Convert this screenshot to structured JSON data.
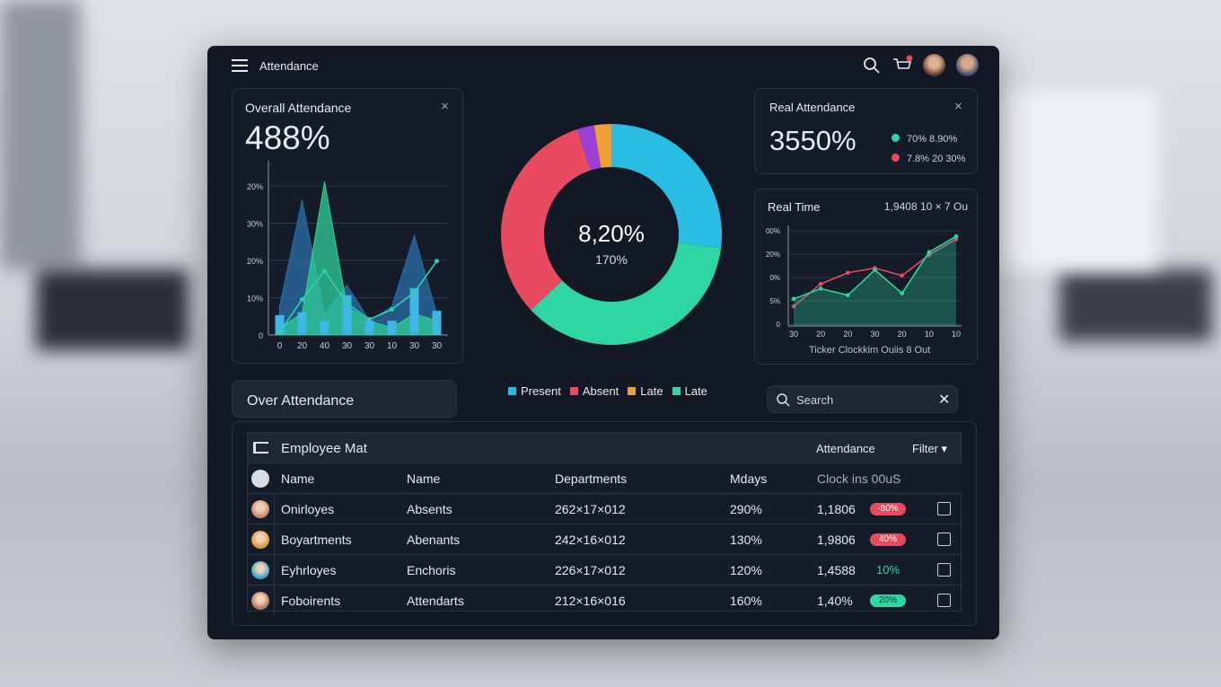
{
  "header": {
    "title": "Attendance"
  },
  "overall": {
    "title": "Overall Attendance",
    "value": "488%",
    "chart_data": {
      "type": "bar",
      "y_labels": [
        "20%",
        "30%",
        "20%",
        "10%",
        "0"
      ],
      "categories": [
        "0",
        "20",
        "40",
        "30",
        "30",
        "10",
        "30",
        "30"
      ],
      "ylim": [
        0,
        110
      ],
      "bars": {
        "color": "#3fb6e6",
        "values": [
          14,
          16,
          10,
          28,
          10,
          10,
          33,
          17
        ]
      },
      "areas": [
        {
          "color": "#2b6ea8",
          "values": [
            20,
            95,
            15,
            35,
            10,
            20,
            70,
            15
          ]
        },
        {
          "color": "#2fcf9a",
          "values": [
            5,
            15,
            108,
            20,
            10,
            5,
            15,
            10
          ]
        }
      ],
      "line": {
        "color": "#2fd0b0",
        "values": [
          2,
          25,
          45,
          22,
          11,
          18,
          30,
          52
        ]
      }
    }
  },
  "donut": {
    "chart_data": {
      "type": "pie",
      "center_value": "8,20%",
      "center_label": "170%",
      "segments": [
        {
          "name": "Present",
          "color": "#29bde3",
          "value": 27
        },
        {
          "name": "Late",
          "color": "#2ed6a2",
          "value": 36
        },
        {
          "name": "Absent",
          "color": "#e84a5f",
          "value": 32
        },
        {
          "color": "#9b3fd6",
          "value": 2.5
        },
        {
          "name": "Late",
          "color": "#f0a030",
          "value": 2.5
        }
      ]
    }
  },
  "real_attendance": {
    "title": "Real Attendance",
    "value": "3550%",
    "legend": [
      {
        "text": "70% 8.90%",
        "color": "#2ed6a2"
      },
      {
        "text": "7.8% 20 30%",
        "color": "#e84a5f"
      }
    ]
  },
  "real_time": {
    "title": "Real Time",
    "meta": "1,9408 10 × 7 Ou",
    "caption": "Ticker Clockkim Ouiis 8 Out",
    "chart_data": {
      "type": "line",
      "y_labels": [
        "00%",
        "20%",
        "0%",
        "5%",
        "0"
      ],
      "categories": [
        "30",
        "20",
        "20",
        "30",
        "20",
        "10",
        "10"
      ],
      "ylim": [
        0,
        100
      ],
      "series": [
        {
          "color": "#e84a5f",
          "values": [
            21,
            45,
            57,
            62,
            54,
            76,
            93
          ]
        },
        {
          "color": "#2ed6a2",
          "fill": true,
          "values": [
            29,
            40,
            33,
            60,
            35,
            79,
            96
          ]
        }
      ]
    }
  },
  "panel_label": "Over Attendance",
  "search": {
    "placeholder": "Search"
  },
  "table": {
    "title": "Employee Mat",
    "attendance": "Attendance",
    "filter": "Filter",
    "columns": [
      "Name",
      "Name",
      "Departments",
      "Mdays",
      "Clock ins 00uS"
    ],
    "rows": [
      {
        "cells": [
          "Onirloyes",
          "Absents",
          "262×17×012",
          "290%",
          "1,1806"
        ],
        "badge": "-80%",
        "badge_style": "red",
        "avatar": "#c98a6a"
      },
      {
        "cells": [
          "Boyartments",
          "Abenants",
          "242×16×012",
          "130%",
          "1,9806"
        ],
        "badge": "40%",
        "badge_style": "red",
        "avatar": "#d99a3a"
      },
      {
        "cells": [
          "Eyhrloyes",
          "Enchoris",
          "226×17×012",
          "120%",
          "1,4588"
        ],
        "badge": "10%",
        "badge_style": "green-text",
        "avatar": "#3aa8c8"
      },
      {
        "cells": [
          "Foboirents",
          "Attendarts",
          "212×16×016",
          "160%",
          "1,40%"
        ],
        "badge": "20%",
        "badge_style": "green",
        "avatar": "#b07a62"
      }
    ]
  }
}
